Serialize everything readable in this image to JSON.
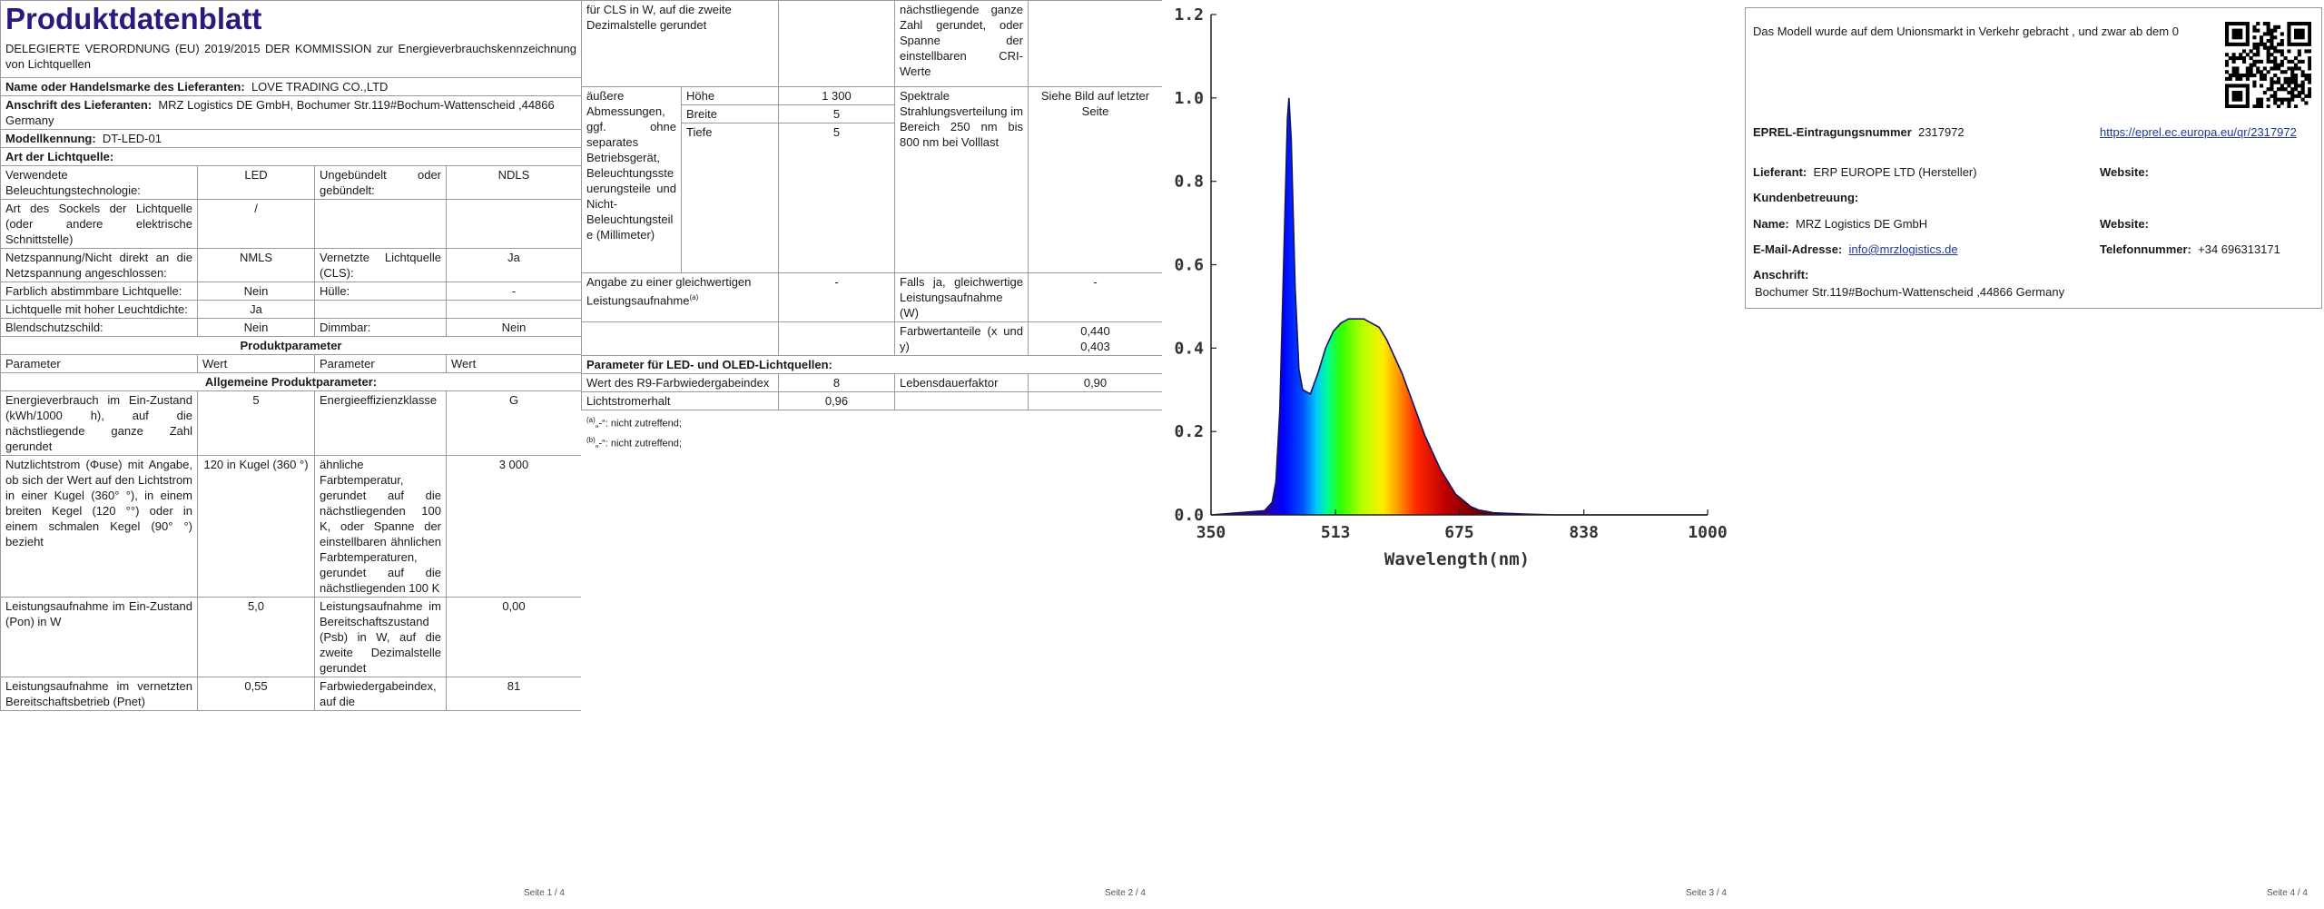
{
  "page1": {
    "title": "Produktdatenblatt",
    "regulation": "DELEGIERTE VERORDNUNG (EU) 2019/2015 DER KOMMISSION zur Energieverbrauchskennzeichnung von Lichtquellen",
    "supplier_name": {
      "label": "Name oder Handelsmarke des Lieferanten:",
      "value": "LOVE TRADING CO.,LTD"
    },
    "supplier_address": {
      "label": "Anschrift des Lieferanten:",
      "value": "MRZ Logistics DE GmbH, Bochumer Str.119#Bochum-Wattenscheid ,44866 Germany"
    },
    "model": {
      "label": "Modellkennung:",
      "value": "DT-LED-01"
    },
    "light_source_heading": "Art der Lichtquelle:",
    "light_source_rows": [
      {
        "parameter": "Verwendete Beleuchtungstechnologie:",
        "value": "LED",
        "parameter2": "Ungebündelt oder gebündelt:",
        "value2": "NDLS"
      },
      {
        "parameter": "Art des Sockels der Lichtquelle (oder andere elektrische Schnittstelle)",
        "value": "/"
      },
      {
        "parameter": "Netzspannung/Nicht direkt an die Netzspannung angeschlossen:",
        "value": "NMLS",
        "parameter2": "Vernetzte Lichtquelle (CLS):",
        "value2": "Ja"
      },
      {
        "parameter": "Farblich abstimmbare Lichtquelle:",
        "value": "Nein",
        "parameter2": "Hülle:",
        "value2": "-"
      },
      {
        "parameter": "Lichtquelle mit hoher Leuchtdichte:",
        "value": "Ja"
      },
      {
        "parameter": "Blendschutzschild:",
        "value": "Nein",
        "parameter2": "Dimmbar:",
        "value2": "Nein"
      }
    ],
    "section_title": "Produktparameter",
    "column_headers": [
      "Parameter",
      "Wert",
      "Parameter",
      "Wert"
    ],
    "general_heading": "Allgemeine Produktparameter:",
    "parameter_rows": [
      {
        "parameter": "Energieverbrauch im Ein-Zustand (kWh/1000 h), auf die nächstliegende ganze Zahl gerundet",
        "value": "5",
        "parameter2": "Energieeffizienzklasse",
        "value2": "G"
      },
      {
        "parameter": "Nutzlichtstrom (Φuse) mit Angabe, ob sich der Wert auf den Lichtstrom in einer Kugel (360° °), in einem breiten Kegel (120 °°) oder in einem schmalen Kegel (90° °) bezieht",
        "value": "120 in Kugel (360 °)",
        "parameter2": "ähnliche Farbtemperatur, gerundet auf die nächstliegenden 100 K, oder Spanne der einstellbaren ähnlichen Farbtemperaturen, gerundet auf die nächstliegenden 100 K",
        "value2": "3 000"
      },
      {
        "parameter": "Leistungsaufnahme im Ein-Zustand (Pon) in W",
        "value": "5,0",
        "parameter2": "Leistungsaufnahme im Bereitschaftszustand (Psb) in W, auf die zweite Dezimalstelle gerundet",
        "value2": "0,00"
      },
      {
        "parameter": "Leistungsaufnahme im vernetzten Bereitschaftsbetrieb (Pnet)",
        "value": "0,55",
        "parameter2": "Farbwiedergabeindex, auf die",
        "value2": "81"
      }
    ],
    "footer": "Seite 1 / 4"
  },
  "page2": {
    "continued": {
      "parameter": "für CLS in W, auf die zweite Dezimalstelle gerundet",
      "parameter2": "nächstliegende ganze Zahl gerundet, oder Spanne der einstellbaren CRI-Werte"
    },
    "dimensions": {
      "label": "äußere Abmessungen, ggf. ohne separates Betriebsgerät, Beleuchtungssteuerungsteile und Nicht-Beleuchtungsteile (Millimeter)",
      "rows": [
        {
          "label": "Höhe",
          "value": "1 300"
        },
        {
          "label": "Breite",
          "value": "5"
        },
        {
          "label": "Tiefe",
          "value": "5"
        }
      ]
    },
    "spectrum": {
      "label": "Spektrale Strahlungsverteilung im Bereich 250 nm bis 800 nm bei Volllast",
      "value": "Siehe Bild auf letzter Seite"
    },
    "equivalent": {
      "parameter": "Angabe zu einer gleichwertigen Leistungsaufnahme",
      "note": "(a)",
      "value": "-",
      "parameter2": "Falls ja, gleichwertige Leistungsaufnahme (W)",
      "value2": "-"
    },
    "chromaticity": {
      "parameter": "Farbwertanteile (x und y)",
      "values": [
        "0,440",
        "0,403"
      ]
    },
    "led_heading": "Parameter für LED- und OLED-Lichtquellen:",
    "r9": {
      "parameter": "Wert des R9-Farbwiedergabeindex",
      "value": "8",
      "parameter2": "Lebensdauerfaktor",
      "value2": "0,90"
    },
    "maintenance": {
      "parameter": "Lichtstromerhalt",
      "value": "0,96"
    },
    "footnotes": [
      {
        "mark": "(a)",
        "text": "„-“: nicht zutreffend;"
      },
      {
        "mark": "(b)",
        "text": "„-“: nicht zutreffend;"
      }
    ],
    "footer": "Seite 2 / 4"
  },
  "chart_data": {
    "type": "area",
    "x_label": "Wavelength(nm)",
    "x": [
      350,
      420,
      430,
      435,
      440,
      445,
      450,
      452,
      455,
      460,
      465,
      470,
      480,
      490,
      500,
      510,
      520,
      530,
      540,
      550,
      560,
      570,
      580,
      590,
      600,
      610,
      620,
      630,
      640,
      650,
      660,
      670,
      680,
      690,
      700,
      720,
      760,
      800,
      1000
    ],
    "values": [
      0,
      0.01,
      0.03,
      0.08,
      0.25,
      0.6,
      0.95,
      1.0,
      0.9,
      0.55,
      0.35,
      0.3,
      0.29,
      0.34,
      0.4,
      0.44,
      0.46,
      0.47,
      0.47,
      0.47,
      0.46,
      0.45,
      0.42,
      0.38,
      0.34,
      0.29,
      0.24,
      0.19,
      0.15,
      0.11,
      0.08,
      0.05,
      0.035,
      0.02,
      0.012,
      0.005,
      0.002,
      0,
      0
    ],
    "color": "#14145e",
    "xlim": [
      350,
      1000
    ],
    "ylim": [
      0,
      1.2
    ],
    "xticks": [
      350,
      513,
      675,
      838,
      1000
    ],
    "yticks": [
      {
        "value": 0,
        "label": "0.0"
      },
      0.2,
      0.4,
      0.6,
      0.8,
      {
        "value": 1,
        "label": "1.0"
      },
      1.2
    ]
  },
  "page3": {
    "footer": "Seite 3 / 4"
  },
  "page4": {
    "intro": "Das Modell wurde auf dem Unionsmarkt in Verkehr gebracht , und zwar ab dem 0",
    "eprel": {
      "label": "EPREL-Eintragungsnummer",
      "value": "2317972",
      "link": "https://eprel.ec.europa.eu/qr/2317972"
    },
    "supplier": {
      "label": "Lieferant:",
      "value": "ERP EUROPE LTD (Hersteller)",
      "website_label": "Website:"
    },
    "support_heading": "Kundenbetreuung:",
    "name": {
      "label": "Name:",
      "value": "MRZ Logistics DE GmbH",
      "website_label": "Website:"
    },
    "email": {
      "label": "E-Mail-Adresse:",
      "value": "info@mrzlogistics.de",
      "phone_label": "Telefonnummer:",
      "phone": "+34 696313171"
    },
    "address": {
      "label": "Anschrift:",
      "value": "Bochumer Str.119#Bochum-Wattenscheid ,44866 Germany"
    },
    "footer": "Seite 4 / 4"
  }
}
